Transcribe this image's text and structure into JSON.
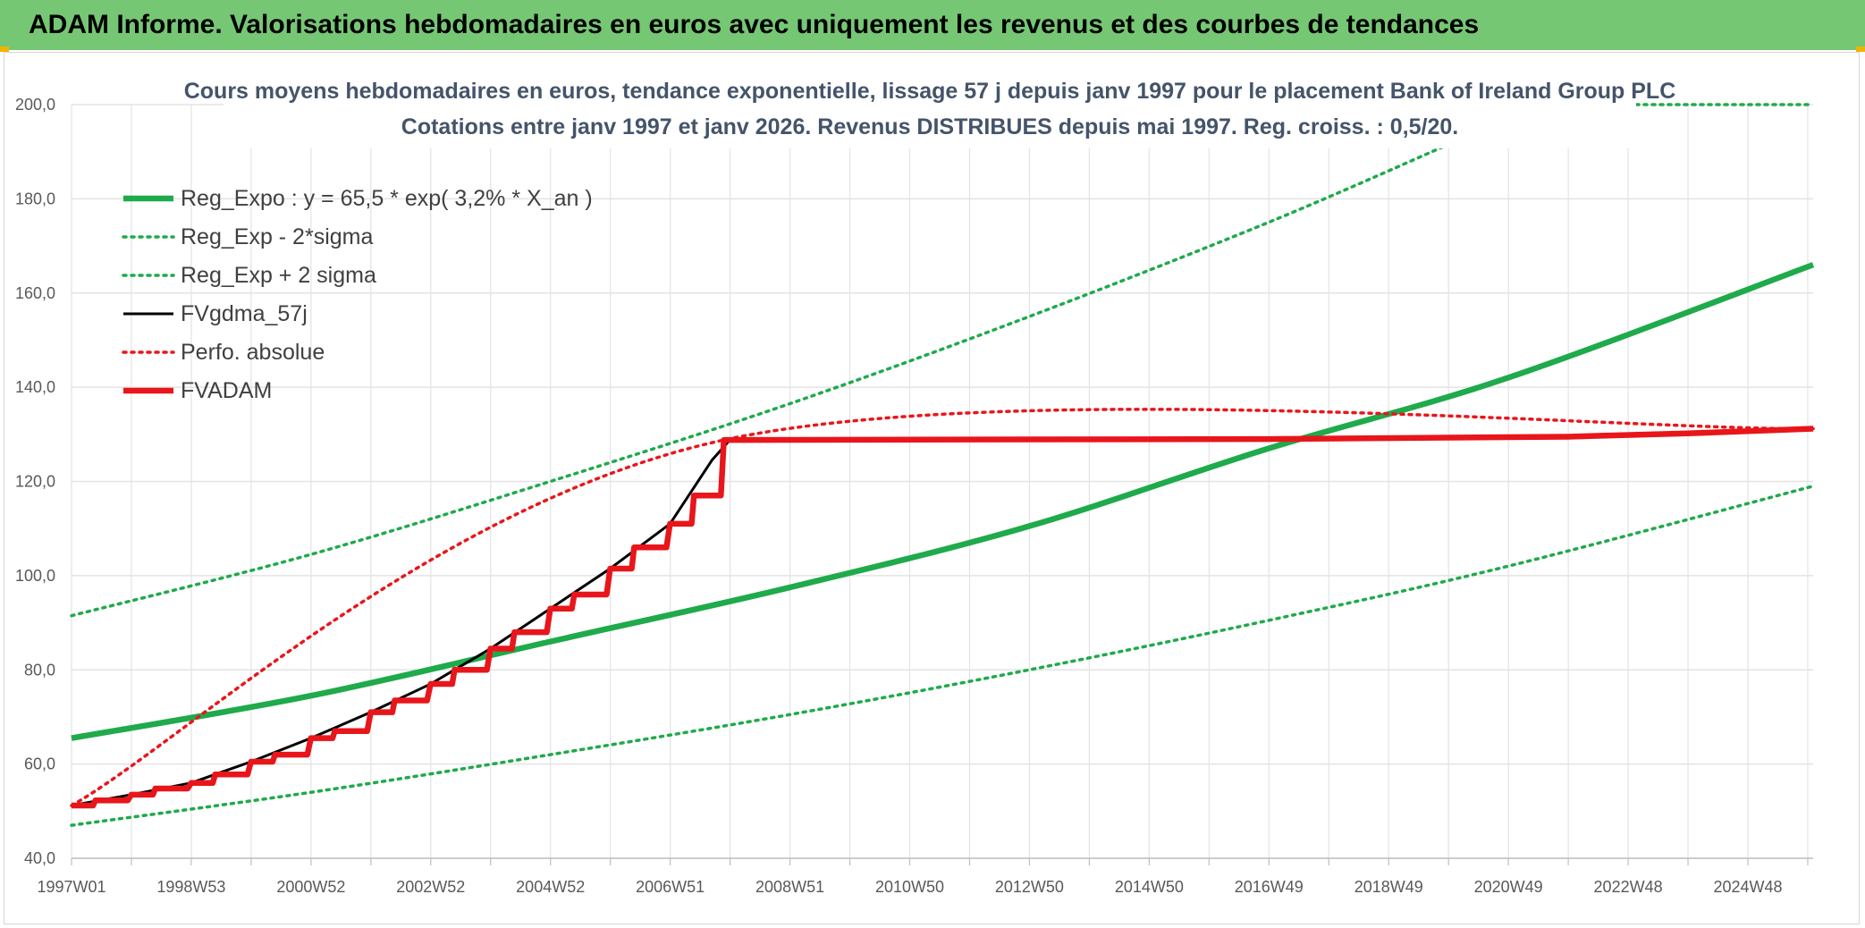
{
  "header": {
    "banner": "ADAM Informe. Valorisations hebdomadaires en euros avec uniquement les revenus et des courbes de tendances"
  },
  "colors": {
    "banner_bg": "#76c774",
    "green": "#1faa4b",
    "red": "#e8161b",
    "black": "#000000",
    "grid": "#e3e3e3"
  },
  "chart_data": {
    "type": "line",
    "title": "Cours moyens hebdomadaires en euros, tendance exponentielle, lissage 57 j depuis janv 1997 pour le placement Bank of Ireland Group PLC",
    "subtitle": "Cotations entre janv 1997 et janv 2026. Revenus DISTRIBUES depuis mai 1997. Reg. croiss. : 0,5/20.",
    "xlabel": "",
    "ylabel": "",
    "ylim": [
      40,
      200
    ],
    "y_ticks": [
      "40,0",
      "60,0",
      "80,0",
      "100,0",
      "120,0",
      "140,0",
      "160,0",
      "180,0",
      "200,0"
    ],
    "x_ticks": [
      "1997W01",
      "1998W53",
      "2000W52",
      "2002W52",
      "2004W52",
      "2006W51",
      "2008W51",
      "2010W50",
      "2012W50",
      "2014W50",
      "2016W49",
      "2018W49",
      "2020W49",
      "2022W48",
      "2024W48"
    ],
    "x_range_years": [
      1997.0,
      2026.1
    ],
    "grid": true,
    "legend_position": "top-left",
    "series": [
      {
        "name": "Reg_Expo : y = 65,5 * exp( 3,2% *  X_an )",
        "style": "solid-thick",
        "color": "#1faa4b",
        "x": [
          1997.0,
          2001.0,
          2005.0,
          2009.0,
          2013.0,
          2017.0,
          2021.0,
          2026.1
        ],
        "y": [
          65.5,
          74.5,
          86.0,
          97.5,
          110.5,
          127.0,
          142.0,
          166.0
        ]
      },
      {
        "name": "Reg_Exp - 2*sigma",
        "style": "dotted",
        "color": "#1faa4b",
        "x": [
          1997.0,
          2001.0,
          2005.0,
          2009.0,
          2013.0,
          2017.0,
          2021.0,
          2026.1
        ],
        "y": [
          47.0,
          54.0,
          62.0,
          70.5,
          80.0,
          90.5,
          102.0,
          119.0
        ]
      },
      {
        "name": "Reg_Exp + 2 sigma",
        "style": "dotted",
        "color": "#1faa4b",
        "x": [
          1997.0,
          2001.0,
          2005.0,
          2009.0,
          2013.0,
          2017.0,
          2020.0
        ],
        "y": [
          91.5,
          104.5,
          120.0,
          136.5,
          155.0,
          175.0,
          191.5
        ]
      },
      {
        "name": "FVgdma_57j",
        "style": "solid",
        "color": "#000000",
        "x": [
          1997.0,
          1998.0,
          1999.0,
          2000.0,
          2001.0,
          2002.0,
          2003.0,
          2004.0,
          2005.0,
          2006.0,
          2007.0,
          2007.7,
          2008.0,
          2017.0,
          2022.0,
          2024.0,
          2026.1
        ],
        "y": [
          51.2,
          53.5,
          56.0,
          60.5,
          65.5,
          71.0,
          77.0,
          84.5,
          93.0,
          101.5,
          111.0,
          124.5,
          128.8,
          129.0,
          129.5,
          130.2,
          131.2
        ]
      },
      {
        "name": "Perfo. absolue",
        "style": "dotted",
        "color": "#e8161b",
        "x": [
          1997.0,
          2007.9,
          2026.1
        ],
        "y": [
          51.2,
          128.8,
          131.2
        ]
      },
      {
        "name": "FVADAM",
        "style": "solid-thick",
        "color": "#e8161b",
        "x": [
          1997.0,
          1997.4,
          1998.0,
          1998.4,
          1999.0,
          1999.4,
          2000.0,
          2000.4,
          2001.0,
          2001.4,
          2002.0,
          2002.4,
          2003.0,
          2003.4,
          2004.0,
          2004.4,
          2005.0,
          2005.4,
          2006.0,
          2006.4,
          2007.0,
          2007.4,
          2007.9,
          2017.0,
          2022.0,
          2024.0,
          2026.1
        ],
        "y": [
          51.2,
          52.3,
          53.5,
          54.8,
          56.0,
          57.8,
          60.5,
          62.0,
          65.5,
          67.0,
          71.0,
          73.5,
          77.0,
          80.0,
          84.5,
          88.0,
          93.0,
          96.0,
          101.5,
          106.0,
          111.0,
          117.0,
          128.8,
          129.0,
          129.5,
          130.2,
          131.2
        ]
      }
    ]
  }
}
